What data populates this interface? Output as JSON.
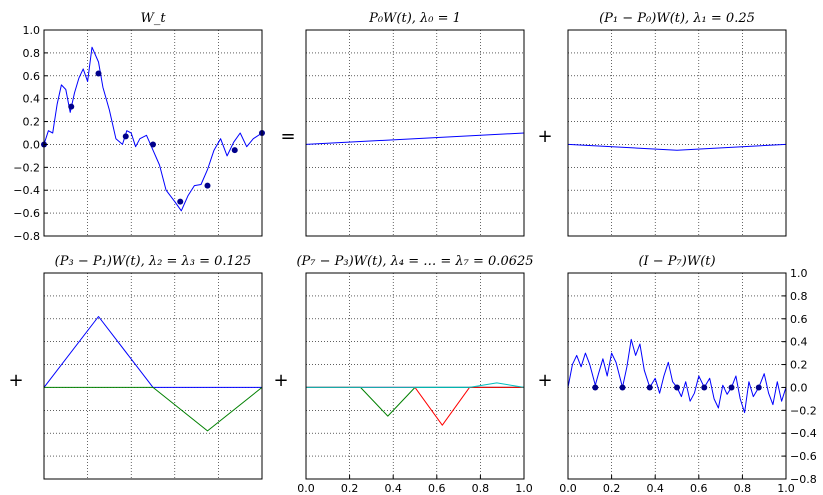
{
  "operators": [
    "=",
    "+",
    "+",
    "+",
    "+"
  ],
  "chart_data": [
    {
      "type": "line",
      "title": "W_t",
      "xlim": [
        0,
        1
      ],
      "ylim": [
        -0.8,
        1.0
      ],
      "yticks": [
        "1.0",
        "0.8",
        "0.6",
        "0.4",
        "0.2",
        "0.0",
        "−0.2",
        "−0.4",
        "−0.6",
        "−0.8"
      ],
      "grid": true,
      "series": [
        {
          "color": "#0000ff",
          "x": [
            0,
            0.02,
            0.04,
            0.06,
            0.08,
            0.1,
            0.12,
            0.14,
            0.16,
            0.18,
            0.2,
            0.22,
            0.25,
            0.27,
            0.3,
            0.33,
            0.36,
            0.38,
            0.4,
            0.42,
            0.44,
            0.47,
            0.5,
            0.53,
            0.56,
            0.6,
            0.63,
            0.66,
            0.69,
            0.72,
            0.75,
            0.78,
            0.81,
            0.84,
            0.87,
            0.9,
            0.93,
            0.96,
            1.0
          ],
          "y": [
            0,
            0.12,
            0.1,
            0.35,
            0.52,
            0.48,
            0.28,
            0.45,
            0.58,
            0.66,
            0.55,
            0.85,
            0.72,
            0.5,
            0.3,
            0.05,
            0.0,
            0.12,
            0.1,
            -0.02,
            0.05,
            0.08,
            -0.05,
            -0.18,
            -0.4,
            -0.5,
            -0.58,
            -0.45,
            -0.36,
            -0.35,
            -0.22,
            -0.05,
            0.05,
            -0.1,
            0.02,
            0.1,
            -0.02,
            0.05,
            0.1
          ]
        }
      ],
      "markers": {
        "x": [
          0,
          0.125,
          0.25,
          0.375,
          0.5,
          0.625,
          0.75,
          0.875,
          1.0
        ],
        "y": [
          0,
          0.33,
          0.62,
          0.07,
          0.0,
          -0.5,
          -0.36,
          -0.05,
          0.1
        ]
      }
    },
    {
      "type": "line",
      "title": "P₀W(t),  λ₀ = 1",
      "xlim": [
        0,
        1
      ],
      "ylim": [
        -0.8,
        1.0
      ],
      "grid": true,
      "series": [
        {
          "color": "#0000ff",
          "x": [
            0,
            1
          ],
          "y": [
            0,
            0.1
          ]
        }
      ]
    },
    {
      "type": "line",
      "title": "(P₁ − P₀)W(t),  λ₁ = 0.25",
      "xlim": [
        0,
        1
      ],
      "ylim": [
        -0.8,
        1.0
      ],
      "grid": true,
      "series": [
        {
          "color": "#0000ff",
          "x": [
            0,
            0.5,
            1
          ],
          "y": [
            0,
            -0.05,
            0
          ]
        }
      ]
    },
    {
      "type": "line",
      "title": "(P₃ − P₁)W(t),  λ₂ = λ₃ = 0.125",
      "xlim": [
        0,
        1
      ],
      "ylim": [
        -0.8,
        1.0
      ],
      "grid": true,
      "series": [
        {
          "color": "#0000ff",
          "x": [
            0,
            0.25,
            0.5,
            1
          ],
          "y": [
            0,
            0.62,
            0,
            0
          ]
        },
        {
          "color": "#008000",
          "x": [
            0,
            0.5,
            0.75,
            1
          ],
          "y": [
            0,
            0,
            -0.38,
            0
          ]
        }
      ]
    },
    {
      "type": "line",
      "title": "(P₇ − P₃)W(t),  λ₄ = … = λ₇ = 0.0625",
      "xlim": [
        0,
        1
      ],
      "ylim": [
        -0.8,
        1.0
      ],
      "xticks": [
        "0.0",
        "0.2",
        "0.4",
        "0.6",
        "0.8",
        "1.0"
      ],
      "grid": true,
      "series": [
        {
          "color": "#0000ff",
          "x": [
            0,
            0.125,
            0.25,
            1
          ],
          "y": [
            0,
            0,
            0,
            0
          ]
        },
        {
          "color": "#008000",
          "x": [
            0,
            0.25,
            0.375,
            0.5,
            1
          ],
          "y": [
            0,
            0,
            -0.25,
            0,
            0
          ]
        },
        {
          "color": "#ff0000",
          "x": [
            0,
            0.5,
            0.625,
            0.75,
            1
          ],
          "y": [
            0,
            0,
            -0.33,
            0,
            0
          ]
        },
        {
          "color": "#00bfbf",
          "x": [
            0,
            0.75,
            0.875,
            1
          ],
          "y": [
            0,
            0,
            0.04,
            0
          ]
        }
      ]
    },
    {
      "type": "line",
      "title": "(I − P₇)W(t)",
      "xlim": [
        0,
        1
      ],
      "ylim": [
        -0.8,
        1.0
      ],
      "xticks": [
        "0.0",
        "0.2",
        "0.4",
        "0.6",
        "0.8",
        "1.0"
      ],
      "yticks": [
        "1.0",
        "0.8",
        "0.6",
        "0.4",
        "0.2",
        "0.0",
        "−0.2",
        "−0.4",
        "−0.6",
        "−0.8"
      ],
      "yaxis_side": "right",
      "grid": true,
      "series": [
        {
          "color": "#0000ff",
          "x": [
            0,
            0.02,
            0.04,
            0.06,
            0.08,
            0.1,
            0.125,
            0.14,
            0.16,
            0.18,
            0.2,
            0.22,
            0.25,
            0.27,
            0.29,
            0.31,
            0.33,
            0.35,
            0.375,
            0.4,
            0.42,
            0.44,
            0.46,
            0.48,
            0.5,
            0.52,
            0.54,
            0.56,
            0.58,
            0.6,
            0.625,
            0.65,
            0.67,
            0.69,
            0.71,
            0.73,
            0.75,
            0.77,
            0.79,
            0.81,
            0.83,
            0.85,
            0.875,
            0.9,
            0.92,
            0.94,
            0.96,
            0.98,
            1.0
          ],
          "y": [
            0,
            0.2,
            0.28,
            0.18,
            0.3,
            0.2,
            0.02,
            0.12,
            0.25,
            0.1,
            0.3,
            0.22,
            0.0,
            0.18,
            0.42,
            0.28,
            0.38,
            0.15,
            0.0,
            0.08,
            -0.05,
            0.1,
            0.22,
            0.05,
            0.0,
            -0.08,
            0.05,
            -0.12,
            -0.05,
            0.1,
            0.0,
            0.08,
            -0.1,
            -0.18,
            0.02,
            -0.06,
            0.0,
            0.1,
            -0.1,
            -0.22,
            0.05,
            -0.08,
            0.0,
            0.12,
            -0.05,
            -0.15,
            0.05,
            -0.12,
            0.0
          ]
        }
      ],
      "markers": {
        "x": [
          0.125,
          0.25,
          0.375,
          0.5,
          0.625,
          0.75,
          0.875
        ],
        "y": [
          0,
          0,
          0,
          0,
          0,
          0,
          0
        ]
      }
    }
  ]
}
